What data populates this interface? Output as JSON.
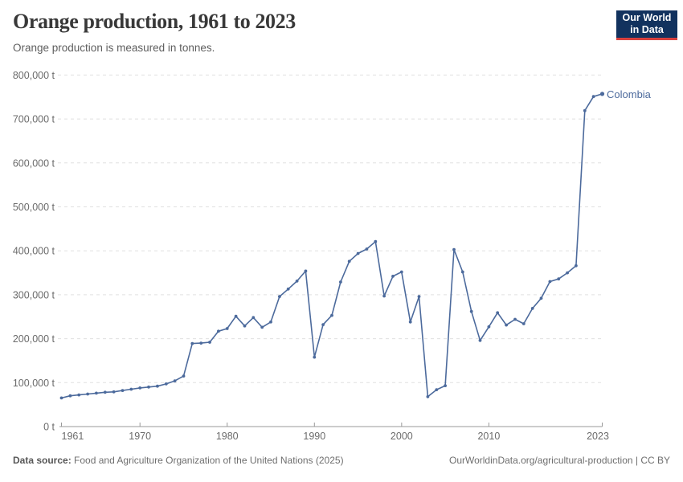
{
  "header": {
    "title": "Orange production, 1961 to 2023",
    "subtitle": "Orange production is measured in tonnes."
  },
  "logo": {
    "line1": "Our World",
    "line2": "in Data",
    "bg_color": "#12325e",
    "accent_color": "#d8413e",
    "text_color": "#ffffff"
  },
  "chart_data": {
    "type": "line",
    "title": "Orange production, 1961 to 2023",
    "subtitle": "Orange production is measured in tonnes.",
    "unit": "t",
    "xlim": [
      1961,
      2023
    ],
    "ylim": [
      0,
      800000
    ],
    "xticks": [
      1961,
      1970,
      1980,
      1990,
      2000,
      2010,
      2023
    ],
    "yticks": [
      0,
      100000,
      200000,
      300000,
      400000,
      500000,
      600000,
      700000,
      800000
    ],
    "grid": "horizontal-dashed",
    "legend_position": "end-of-line-label",
    "series": [
      {
        "name": "Colombia",
        "color": "#4c6a9c",
        "x": [
          1961,
          1962,
          1963,
          1964,
          1965,
          1966,
          1967,
          1968,
          1969,
          1970,
          1971,
          1972,
          1973,
          1974,
          1975,
          1976,
          1977,
          1978,
          1979,
          1980,
          1981,
          1982,
          1983,
          1984,
          1985,
          1986,
          1987,
          1988,
          1989,
          1990,
          1991,
          1992,
          1993,
          1994,
          1995,
          1996,
          1997,
          1998,
          1999,
          2000,
          2001,
          2002,
          2003,
          2004,
          2005,
          2006,
          2007,
          2008,
          2009,
          2010,
          2011,
          2012,
          2013,
          2014,
          2015,
          2016,
          2017,
          2018,
          2019,
          2020,
          2021,
          2022,
          2023
        ],
        "values": [
          65000,
          70000,
          72000,
          74000,
          76000,
          78000,
          79000,
          82000,
          85000,
          88000,
          90000,
          92000,
          97000,
          104000,
          115000,
          189000,
          190000,
          192000,
          217000,
          223000,
          251000,
          229000,
          248000,
          226000,
          238000,
          296000,
          313000,
          331000,
          354000,
          158000,
          232000,
          253000,
          329000,
          376000,
          394000,
          404000,
          421000,
          297000,
          342000,
          352000,
          238000,
          296000,
          68000,
          84000,
          93000,
          403000,
          352000,
          262000,
          196000,
          227000,
          259000,
          231000,
          244000,
          234000,
          269000,
          292000,
          330000,
          336000,
          350000,
          366000,
          719000,
          751000,
          757000
        ]
      }
    ]
  },
  "footer": {
    "source_label": "Data source:",
    "source_text": " Food and Agriculture Organization of the United Nations (2025)",
    "link_text": "OurWorldinData.org/agricultural-production | CC BY"
  },
  "colors": {
    "line": "#4c6a9c",
    "grid": "#e0e0e0",
    "axis": "#9a9a9a",
    "tick_text": "#6b6b6b",
    "title_text": "#383838",
    "subtitle_text": "#5e5e5e"
  }
}
